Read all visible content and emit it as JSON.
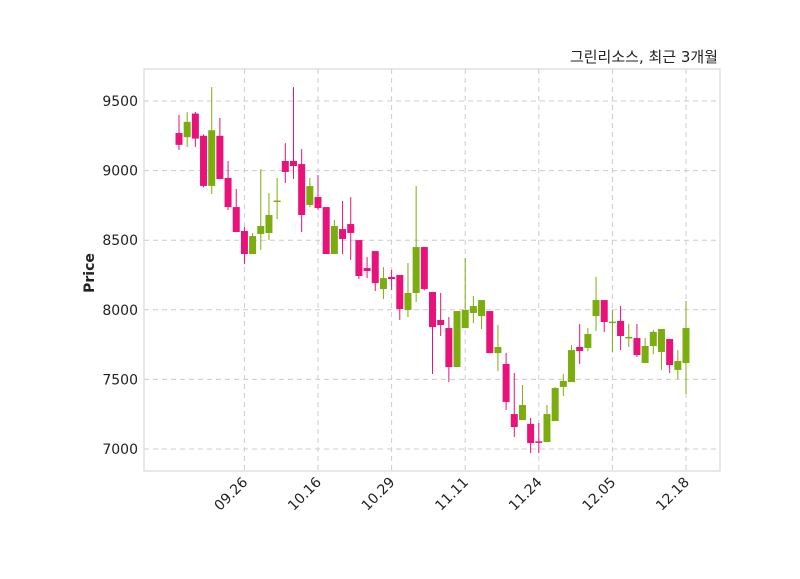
{
  "chart_data": {
    "type": "candlestick",
    "title": "그린리소스, 최근 3개월",
    "xlabel": "",
    "ylabel": "Price",
    "ylim": [
      6842,
      9730
    ],
    "yticks": [
      7000,
      7500,
      8000,
      8500,
      9000,
      9500
    ],
    "grid": true,
    "colors": {
      "up": "#7cad0e",
      "down": "#e8127a",
      "grid": "#cccccc",
      "frame": "#d0d0d0"
    },
    "xticks": [
      {
        "index": 8,
        "label": "09.26"
      },
      {
        "index": 17,
        "label": "10.16"
      },
      {
        "index": 26,
        "label": "10.29"
      },
      {
        "index": 35,
        "label": "11.11"
      },
      {
        "index": 44,
        "label": "11.24"
      },
      {
        "index": 53,
        "label": "12.05"
      },
      {
        "index": 62,
        "label": "12.18"
      }
    ],
    "ohlc": [
      [
        9270,
        9400,
        9148,
        9185
      ],
      [
        9240,
        9421,
        9170,
        9350
      ],
      [
        9410,
        9421,
        9170,
        9230
      ],
      [
        9250,
        9260,
        8880,
        8890
      ],
      [
        8890,
        9600,
        8832,
        9290
      ],
      [
        9250,
        9378,
        8940,
        8940
      ],
      [
        8947,
        9069,
        8717,
        8738
      ],
      [
        8738,
        8868,
        8559,
        8559
      ],
      [
        8566,
        8595,
        8329,
        8401
      ],
      [
        8401,
        8552,
        8400,
        8530
      ],
      [
        8545,
        9011,
        8430,
        8602
      ],
      [
        8552,
        8839,
        8501,
        8681
      ],
      [
        8775,
        8947,
        8652,
        8785
      ],
      [
        9069,
        9198,
        8911,
        8990
      ],
      [
        9069,
        9600,
        8940,
        9033
      ],
      [
        9047,
        9155,
        8559,
        8681
      ],
      [
        8753,
        8947,
        8738,
        8889
      ],
      [
        8810,
        8968,
        8717,
        8731
      ],
      [
        8738,
        8738,
        8401,
        8401
      ],
      [
        8401,
        8645,
        8400,
        8602
      ],
      [
        8580,
        8782,
        8401,
        8509
      ],
      [
        8616,
        8810,
        8358,
        8552
      ],
      [
        8501,
        8501,
        8221,
        8243
      ],
      [
        8300,
        8379,
        8228,
        8279
      ],
      [
        8422,
        8422,
        8135,
        8192
      ],
      [
        8149,
        8307,
        8078,
        8228
      ],
      [
        8236,
        8286,
        8142,
        8221
      ],
      [
        8250,
        8250,
        7927,
        8006
      ],
      [
        7999,
        8336,
        7948,
        8121
      ],
      [
        8121,
        8889,
        8056,
        8451
      ],
      [
        8451,
        8451,
        8140,
        8149
      ],
      [
        8128,
        8128,
        7539,
        7876
      ],
      [
        7927,
        8121,
        7812,
        7891
      ],
      [
        7869,
        7948,
        7481,
        7589
      ],
      [
        7589,
        7991,
        7589,
        7991
      ],
      [
        7869,
        8372,
        7869,
        7999
      ],
      [
        7977,
        8099,
        7905,
        8027
      ],
      [
        7955,
        8070,
        7862,
        8070
      ],
      [
        7991,
        7991,
        7689,
        7689
      ],
      [
        7689,
        7891,
        7560,
        7733
      ],
      [
        7611,
        7690,
        7280,
        7338
      ],
      [
        7251,
        7546,
        7086,
        7158
      ],
      [
        7208,
        7460,
        7208,
        7316
      ],
      [
        7180,
        7223,
        6971,
        7043
      ],
      [
        7055,
        7187,
        6971,
        7045
      ],
      [
        7050,
        7316,
        7050,
        7251
      ],
      [
        7201,
        7445,
        7201,
        7438
      ],
      [
        7446,
        7539,
        7381,
        7489
      ],
      [
        7481,
        7747,
        7481,
        7711
      ],
      [
        7733,
        7898,
        7611,
        7704
      ],
      [
        7726,
        7869,
        7704,
        7826
      ],
      [
        7955,
        8236,
        7848,
        8070
      ],
      [
        8070,
        8070,
        7840,
        7912
      ],
      [
        7905,
        7999,
        7697,
        7915
      ],
      [
        7920,
        8027,
        7711,
        7812
      ],
      [
        7795,
        7898,
        7733,
        7805
      ],
      [
        7797,
        7898,
        7661,
        7675
      ],
      [
        7618,
        7797,
        7618,
        7740
      ],
      [
        7740,
        7855,
        7682,
        7841
      ],
      [
        7697,
        7862,
        7568,
        7862
      ],
      [
        7790,
        7790,
        7546,
        7603
      ],
      [
        7568,
        7711,
        7503,
        7632
      ],
      [
        7618,
        8063,
        7395,
        7869
      ]
    ]
  }
}
